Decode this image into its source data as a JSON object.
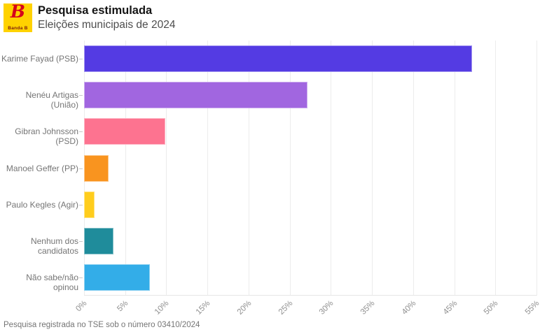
{
  "header": {
    "logo": {
      "brand": "Banda B",
      "letter": "B",
      "bg_color": "#FFD200",
      "letter_color": "#D6001C"
    },
    "title": "Pesquisa estimulada",
    "subtitle": "Eleições municipais de 2024"
  },
  "chart_data": {
    "type": "bar",
    "orientation": "horizontal",
    "title": "Pesquisa estimulada",
    "subtitle": "Eleições municipais de 2024",
    "categories": [
      "Karime Fayad (PSB)",
      "Nenéu Artigas (União)",
      "Gibran Johnsson (PSD)",
      "Manoel Geffer (PP)",
      "Paulo Kegles (Agir)",
      "Nenhum dos candidatos",
      "Não sabe/não opinou"
    ],
    "values": [
      47.2,
      27.2,
      9.9,
      3.0,
      1.3,
      3.6,
      8.0
    ],
    "bar_colors": [
      "#543BE3",
      "#A166E0",
      "#FD7390",
      "#F9941F",
      "#FFCD1D",
      "#1F8C9B",
      "#33ADE8"
    ],
    "xlabel": "",
    "ylabel": "",
    "xlim": [
      0,
      55
    ],
    "x_ticks": [
      "0%",
      "5%",
      "10%",
      "15%",
      "20%",
      "25%",
      "30%",
      "35%",
      "40%",
      "45%",
      "50%",
      "55%"
    ],
    "grid": true,
    "legend": "none"
  },
  "footer": {
    "note": "Pesquisa registrada no TSE sob o número 03410/2024"
  }
}
